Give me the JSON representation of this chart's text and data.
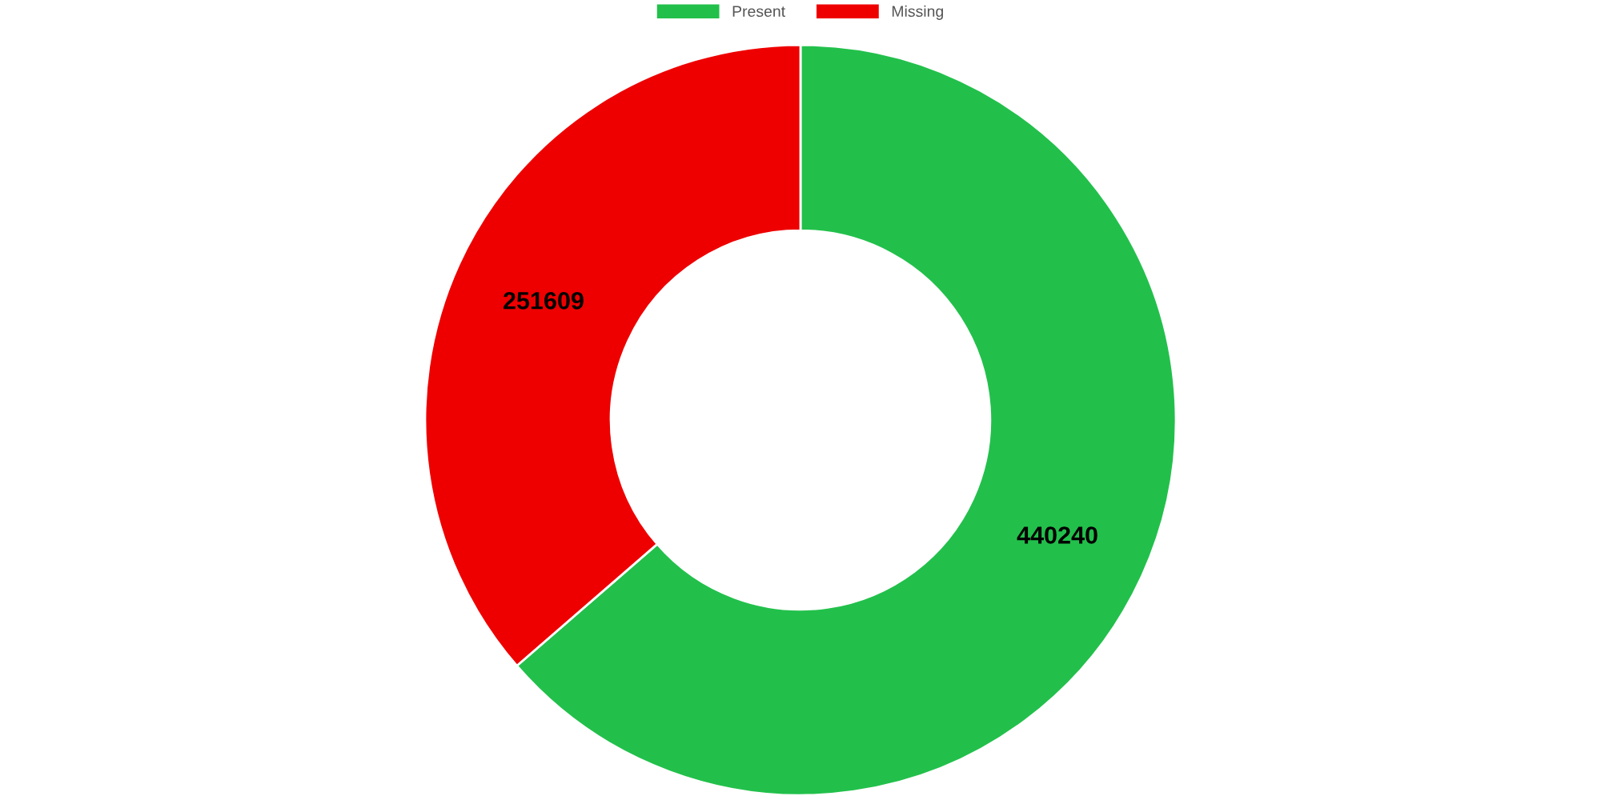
{
  "chart_data": {
    "type": "donut",
    "categories": [
      "Present",
      "Missing"
    ],
    "values": [
      440240,
      251609
    ],
    "colors": [
      "#22c04b",
      "#ee0000"
    ],
    "data_labels": true,
    "legend": "top"
  }
}
